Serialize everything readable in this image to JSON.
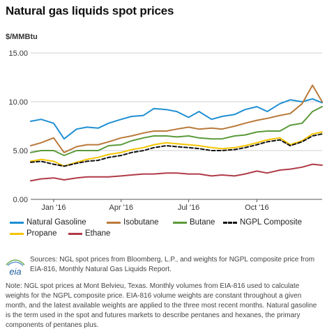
{
  "title": "Natural gas liquids spot prices",
  "chart_data": {
    "type": "line",
    "title": "Natural gas liquids spot prices",
    "ylabel": "$/MMBtu",
    "xlabel": "",
    "ylim": [
      0,
      15
    ],
    "yticks": [
      "0.00",
      "5.00",
      "10.00",
      "15.00"
    ],
    "xticks": [
      {
        "label": "Jan '16",
        "date": "2016-01-01"
      },
      {
        "label": "Apr '16",
        "date": "2016-04-01"
      },
      {
        "label": "Jul '16",
        "date": "2016-07-01"
      },
      {
        "label": "Oct '16",
        "date": "2016-10-01"
      }
    ],
    "xrange": [
      "2015-12-01",
      "2016-12-28"
    ],
    "grid": "horizontal",
    "legend_position": "bottom",
    "x": [
      "2015-12-01",
      "2015-12-15",
      "2016-01-01",
      "2016-01-15",
      "2016-02-01",
      "2016-02-15",
      "2016-03-01",
      "2016-03-15",
      "2016-04-01",
      "2016-04-15",
      "2016-05-01",
      "2016-05-15",
      "2016-06-01",
      "2016-06-15",
      "2016-07-01",
      "2016-07-15",
      "2016-08-01",
      "2016-08-15",
      "2016-09-01",
      "2016-09-15",
      "2016-10-01",
      "2016-10-15",
      "2016-11-01",
      "2016-11-15",
      "2016-12-01",
      "2016-12-15",
      "2016-12-28"
    ],
    "series": [
      {
        "name": "Natural Gasoline",
        "color": "#1f8fd3",
        "dash": false,
        "values": [
          8.0,
          8.2,
          7.8,
          6.2,
          7.2,
          7.4,
          7.3,
          7.8,
          8.2,
          8.5,
          8.6,
          9.3,
          9.2,
          9.0,
          8.4,
          9.0,
          8.2,
          8.5,
          8.7,
          9.2,
          9.5,
          9.0,
          9.8,
          10.2,
          10.0,
          10.3,
          9.9
        ]
      },
      {
        "name": "Isobutane",
        "color": "#b9793a",
        "dash": false,
        "values": [
          5.5,
          5.8,
          6.3,
          4.8,
          5.4,
          5.6,
          5.6,
          5.9,
          6.3,
          6.5,
          6.8,
          7.0,
          7.0,
          7.2,
          7.4,
          7.2,
          7.3,
          7.2,
          7.5,
          7.8,
          8.1,
          8.3,
          8.6,
          8.8,
          9.8,
          11.7,
          10.0
        ]
      },
      {
        "name": "Butane",
        "color": "#5a9a3a",
        "dash": false,
        "values": [
          4.8,
          5.0,
          5.0,
          4.5,
          5.0,
          5.0,
          5.0,
          5.5,
          5.6,
          6.0,
          6.3,
          6.5,
          6.5,
          6.4,
          6.5,
          6.3,
          6.2,
          6.2,
          6.5,
          6.6,
          6.9,
          7.0,
          7.0,
          7.6,
          7.8,
          9.0,
          9.5
        ]
      },
      {
        "name": "NGPL Composite",
        "color": "#111111",
        "dash": true,
        "values": [
          3.8,
          3.9,
          3.6,
          3.4,
          3.7,
          3.9,
          4.0,
          4.3,
          4.5,
          4.8,
          5.0,
          5.3,
          5.5,
          5.4,
          5.3,
          5.2,
          5.0,
          5.0,
          5.1,
          5.3,
          5.6,
          5.9,
          6.1,
          5.5,
          5.9,
          6.5,
          6.7
        ]
      },
      {
        "name": "Propane",
        "color": "#f5c400",
        "dash": false,
        "values": [
          3.9,
          4.1,
          3.9,
          3.4,
          3.8,
          4.1,
          4.3,
          4.6,
          4.8,
          5.1,
          5.3,
          5.6,
          5.8,
          5.7,
          5.6,
          5.5,
          5.3,
          5.2,
          5.3,
          5.5,
          5.8,
          6.1,
          6.3,
          5.6,
          6.0,
          6.7,
          6.9
        ]
      },
      {
        "name": "Ethane",
        "color": "#b03a48",
        "dash": false,
        "values": [
          1.9,
          2.1,
          2.2,
          2.0,
          2.2,
          2.3,
          2.3,
          2.3,
          2.4,
          2.5,
          2.6,
          2.6,
          2.7,
          2.7,
          2.6,
          2.6,
          2.4,
          2.5,
          2.4,
          2.6,
          2.9,
          2.7,
          3.0,
          3.1,
          3.3,
          3.6,
          3.5
        ]
      }
    ]
  },
  "legend": {
    "row1": [
      "Natural Gasoline",
      "Isobutane",
      "Butane",
      "NGPL Composite"
    ],
    "row2": [
      "Propane",
      "Ethane"
    ]
  },
  "logo_text": "eia",
  "sources": "Sources: NGL spot prices from Bloomberg, L.P., and weights for NGPL composite price from EIA-816, Monthly Natural Gas Liquids Report.",
  "note": "Note: NGL spot prices at Mont Belvieu, Texas. Monthly volumes from EIA-816 used to calculate weights for the NGPL composite price. EIA-816 volume weights are constant throughout a given month, and the latest available weights are applied to the three most recent months. Natural gasoline is the term used in the spot and futures markets to describe pentanes and hexanes, the primary components of pentanes plus."
}
